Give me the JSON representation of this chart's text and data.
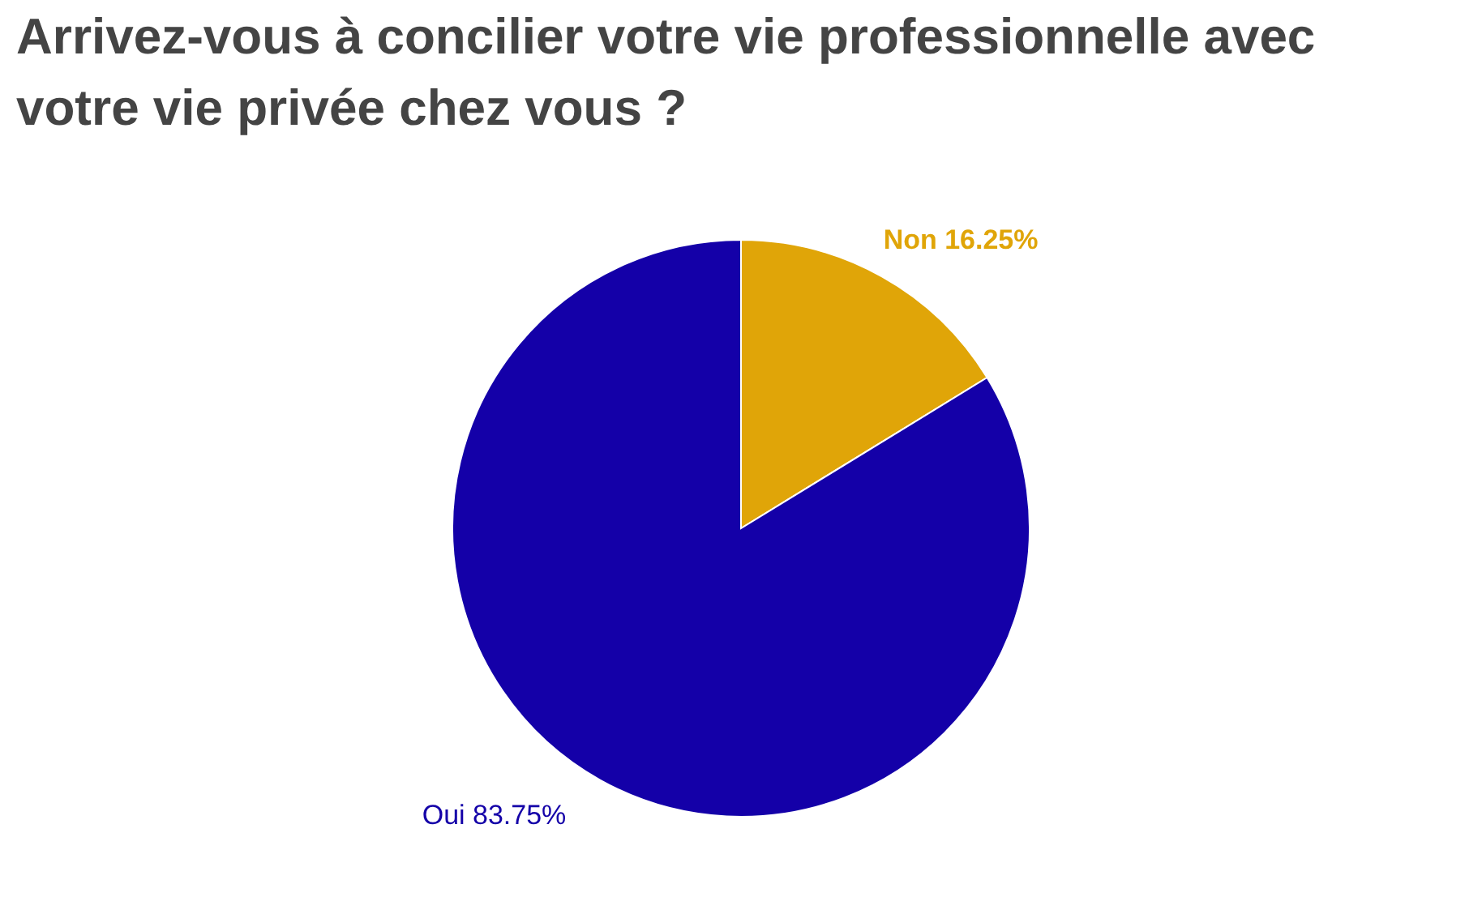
{
  "chart_data": {
    "type": "pie",
    "title": [
      "Arrivez-vous à concilier votre vie professionnelle avec",
      "votre vie privée chez vous ?"
    ],
    "categories": [
      "Non",
      "Oui"
    ],
    "values": [
      16.25,
      83.75
    ],
    "value_labels": [
      "16.25%",
      "83.75%"
    ],
    "colors": [
      "#e0a508",
      "#1400a8"
    ],
    "legend": false
  }
}
